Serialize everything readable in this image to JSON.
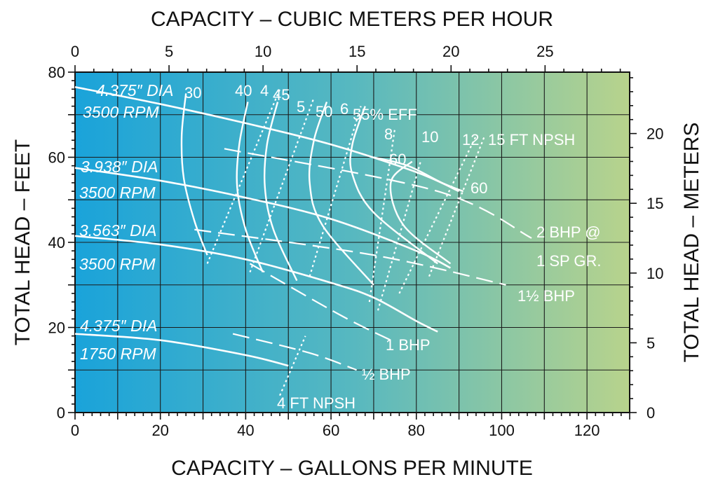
{
  "chart_data": {
    "type": "line",
    "title": "",
    "xlabel": "CAPACITY – GALLONS PER MINUTE",
    "ylabel": "TOTAL HEAD – FEET",
    "x2label": "CAPACITY – CUBIC METERS PER HOUR",
    "y2label": "TOTAL HEAD – METERS",
    "xlim": [
      0,
      130
    ],
    "ylim": [
      0,
      80
    ],
    "x2lim": [
      0,
      29.5
    ],
    "y2lim": [
      0,
      24.4
    ],
    "x_ticks": [
      "0",
      "20",
      "40",
      "60",
      "80",
      "100",
      "120"
    ],
    "y_ticks": [
      "0",
      "20",
      "40",
      "60",
      "80"
    ],
    "x2_ticks": [
      "0",
      "5",
      "10",
      "15",
      "20",
      "25"
    ],
    "y2_ticks": [
      "0",
      "5",
      "10",
      "15",
      "20"
    ],
    "grid": true,
    "background_gradient": [
      "#1aa3da",
      "#57b8c0",
      "#b8d38c"
    ],
    "series": [
      {
        "name": "4.375\" DIA 3500 RPM",
        "x": [
          0,
          20,
          40,
          60,
          80,
          90
        ],
        "y": [
          76.5,
          72.5,
          68,
          63,
          56.5,
          52
        ]
      },
      {
        "name": "3.938\" DIA 3500 RPM",
        "x": [
          0,
          20,
          40,
          60,
          80,
          88
        ],
        "y": [
          57.5,
          54.5,
          50.5,
          45.5,
          38,
          34
        ]
      },
      {
        "name": "3.563\" DIA 3500 RPM",
        "x": [
          0,
          20,
          40,
          60,
          70,
          80,
          85
        ],
        "y": [
          41.5,
          39.5,
          36,
          30.5,
          27,
          21.5,
          19
        ]
      },
      {
        "name": "4.375\" DIA 1750 RPM",
        "x": [
          0,
          20,
          40,
          50
        ],
        "y": [
          18.5,
          17,
          13.5,
          11
        ]
      }
    ],
    "efficiency_contours": [
      {
        "label": "30",
        "x": [
          26,
          25,
          25.5,
          28,
          31
        ],
        "y": [
          75,
          65,
          55,
          45,
          37
        ]
      },
      {
        "label": "40",
        "x": [
          40.5,
          38.5,
          38,
          40,
          44
        ],
        "y": [
          73,
          63,
          53,
          43,
          33
        ]
      },
      {
        "label": "45",
        "x": [
          47.5,
          45,
          44.5,
          46.5,
          52
        ],
        "y": [
          73,
          63,
          53,
          43,
          31
        ]
      },
      {
        "label": "50",
        "x": [
          59,
          56,
          55,
          58,
          70
        ],
        "y": [
          73,
          64,
          54,
          44,
          30
        ]
      },
      {
        "label": "55% EFF",
        "x": [
          68,
          65,
          65,
          70,
          85
        ],
        "y": [
          72,
          63,
          56,
          47,
          35
        ]
      },
      {
        "label": "60",
        "x": [
          79,
          74,
          77,
          88
        ],
        "y": [
          59,
          54,
          44,
          35
        ]
      },
      {
        "label": "60",
        "x": [
          70,
          78,
          86,
          91
        ],
        "y": [
          60,
          58,
          54,
          52
        ]
      }
    ],
    "npsh_lines": [
      {
        "label": "4",
        "x": [
          31,
          48
        ],
        "y": [
          35,
          76
        ]
      },
      {
        "label": "5",
        "x": [
          41,
          56
        ],
        "y": [
          33,
          74
        ]
      },
      {
        "label": "6",
        "x": [
          55,
          67
        ],
        "y": [
          32,
          72
        ]
      },
      {
        "label": "8",
        "x": [
          69,
          75
        ],
        "y": [
          26,
          67
        ]
      },
      {
        "label": "10",
        "x": [
          71,
          81
        ],
        "y": [
          24,
          59
        ]
      },
      {
        "label": "12",
        "x": [
          76,
          94
        ],
        "y": [
          28,
          65
        ]
      },
      {
        "label": "15 FT NPSH",
        "x": [
          83,
          96
        ],
        "y": [
          32,
          65
        ]
      },
      {
        "label": "4 FT NPSH",
        "x": [
          48,
          54
        ],
        "y": [
          4,
          18
        ]
      }
    ],
    "bhp_lines": [
      {
        "label": "2 BHP @ 1 SP GR.",
        "x": [
          35,
          85,
          107
        ],
        "y": [
          62,
          52,
          41
        ]
      },
      {
        "label": "1½ BHP",
        "x": [
          28,
          70,
          101
        ],
        "y": [
          43,
          37,
          30
        ]
      },
      {
        "label": "1 BHP",
        "x": [
          41,
          62,
          74
        ],
        "y": [
          35,
          23,
          17
        ]
      },
      {
        "label": "½ BHP",
        "x": [
          37,
          55,
          66
        ],
        "y": [
          18.5,
          14,
          10
        ]
      }
    ],
    "annotations": [
      "4.375″ DIA",
      "3500 RPM",
      "3.938″ DIA",
      "3500 RPM",
      "3.563″ DIA",
      "3500 RPM",
      "4.375″ DIA",
      "1750 RPM",
      "30",
      "40",
      "4",
      "45",
      "5",
      "50",
      "6",
      "55% EFF",
      "8",
      "10",
      "12",
      "15 FT NPSH",
      "60",
      "60",
      "2 BHP @",
      "1 SP GR.",
      "1½ BHP",
      "1 BHP",
      "½ BHP",
      "4 FT NPSH"
    ]
  }
}
